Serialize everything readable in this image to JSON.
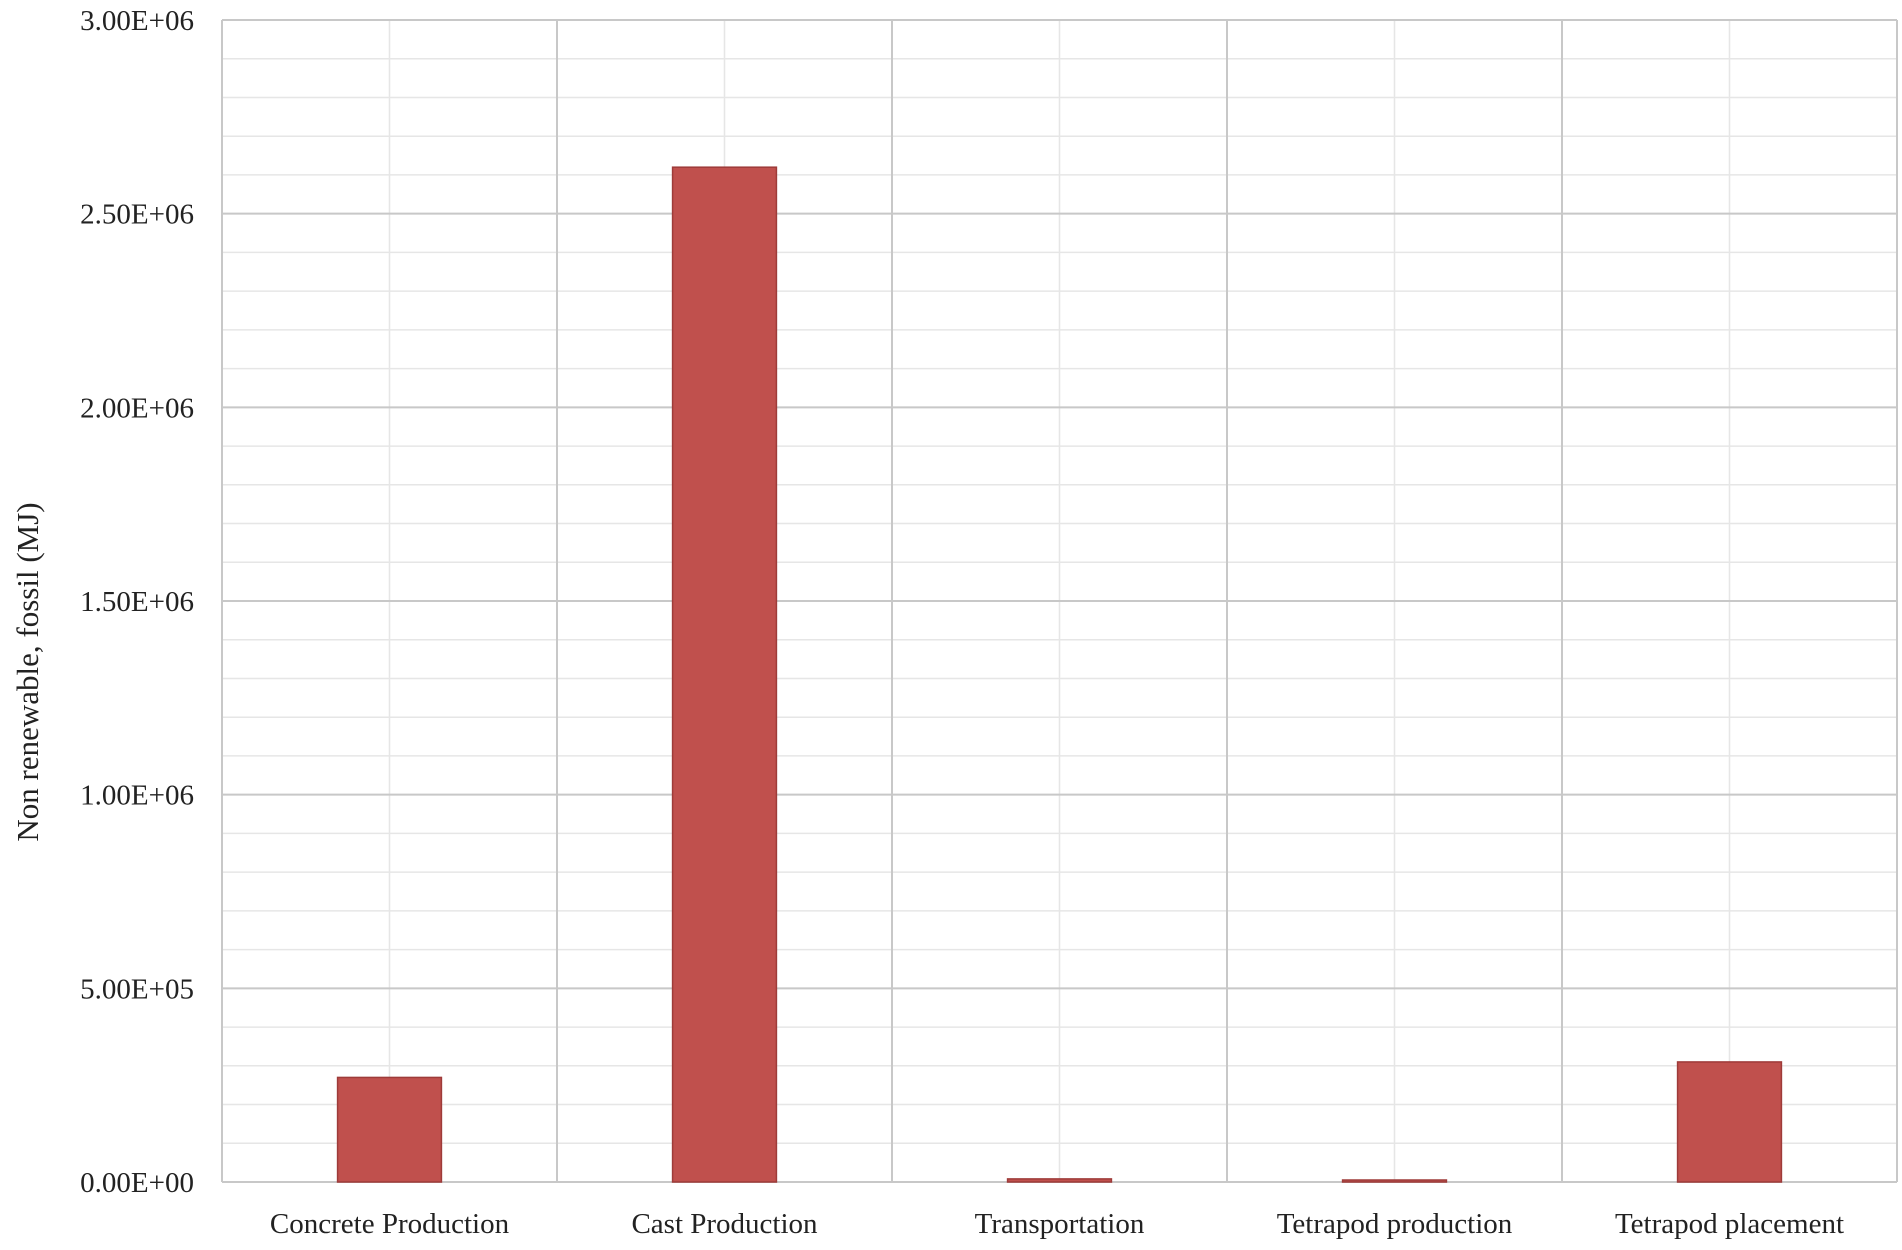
{
  "chart_data": {
    "type": "bar",
    "title": "",
    "xlabel": "",
    "ylabel": "Non renewable, fossil (MJ)",
    "categories": [
      "Concrete Production",
      "Cast Production",
      "Transportation",
      "Tetrapod production",
      "Tetrapod placement"
    ],
    "values": [
      270000,
      2620000,
      8000,
      5000,
      310000
    ],
    "ylim": [
      0,
      3000000
    ],
    "y_major_step": 500000,
    "y_minor_step": 100000,
    "y_tick_labels": [
      "0.00E+00",
      "5.00E+05",
      "1.00E+06",
      "1.50E+06",
      "2.00E+06",
      "2.50E+06",
      "3.00E+06"
    ],
    "grid": true,
    "legend": "none",
    "colors": {
      "bar": "#c0504d",
      "bar_edge": "#9e3b39",
      "major_grid": "#c8c8c8",
      "minor_grid": "#e6e6e6"
    }
  }
}
